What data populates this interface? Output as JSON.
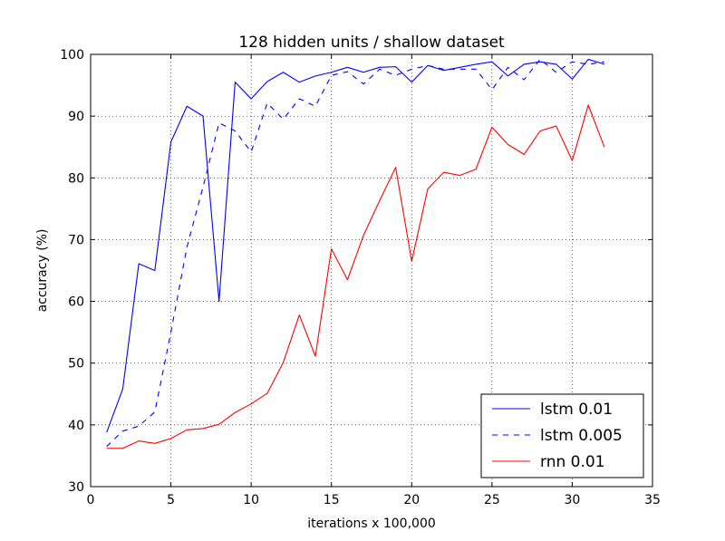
{
  "chart_data": {
    "type": "line",
    "title": "128 hidden units / shallow dataset",
    "xlabel": "iterations x 100,000",
    "ylabel": "accuracy (%)",
    "xlim": [
      0,
      35
    ],
    "ylim": [
      30,
      100
    ],
    "xticks": [
      0,
      5,
      10,
      15,
      20,
      25,
      30,
      35
    ],
    "yticks": [
      30,
      40,
      50,
      60,
      70,
      80,
      90,
      100
    ],
    "grid": true,
    "legend_position": "lower-right",
    "x": [
      1,
      2,
      3,
      4,
      5,
      6,
      7,
      8,
      9,
      10,
      11,
      12,
      13,
      14,
      15,
      16,
      17,
      18,
      19,
      20,
      21,
      22,
      23,
      24,
      25,
      26,
      27,
      28,
      29,
      30,
      31,
      32
    ],
    "series": [
      {
        "name": "lstm 0.01",
        "color": "#0000ff",
        "linestyle": "solid",
        "values": [
          38.8,
          45.8,
          66.1,
          65.0,
          85.8,
          91.6,
          90.0,
          60.0,
          95.5,
          92.8,
          95.6,
          97.1,
          95.5,
          96.5,
          97.1,
          97.9,
          97.1,
          97.9,
          98.0,
          95.5,
          98.2,
          97.4,
          97.9,
          98.4,
          98.8,
          96.5,
          98.4,
          98.8,
          98.4,
          96.0,
          99.2,
          98.4
        ]
      },
      {
        "name": "lstm 0.005",
        "color": "#0000ff",
        "linestyle": "dashed",
        "values": [
          36.5,
          39.0,
          39.8,
          42.1,
          55.0,
          68.8,
          78.5,
          88.9,
          87.6,
          84.2,
          92.1,
          89.5,
          92.8,
          91.6,
          96.6,
          97.2,
          95.2,
          97.6,
          96.6,
          97.6,
          98.2,
          97.6,
          97.6,
          97.6,
          94.3,
          97.9,
          95.9,
          99.2,
          97.1,
          98.8,
          98.4,
          98.8
        ]
      },
      {
        "name": "rnn 0.01",
        "color": "#ff0000",
        "linestyle": "solid",
        "values": [
          36.2,
          36.2,
          37.4,
          37.0,
          37.8,
          39.2,
          39.4,
          40.1,
          42.0,
          43.4,
          45.1,
          50.1,
          57.8,
          51.1,
          68.5,
          63.5,
          70.7,
          76.3,
          81.7,
          66.5,
          78.2,
          80.9,
          80.4,
          81.4,
          88.2,
          85.4,
          83.8,
          87.6,
          88.4,
          82.8,
          91.8,
          85.0
        ]
      }
    ]
  }
}
